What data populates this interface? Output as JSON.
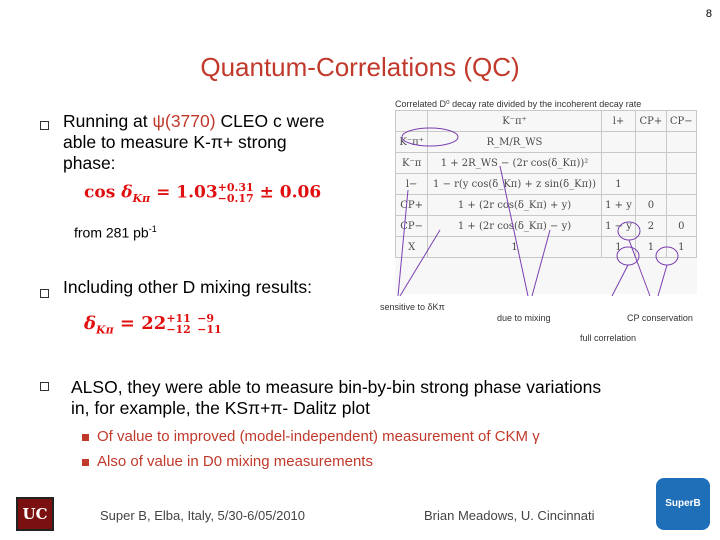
{
  "page_number": "8",
  "title": "Quantum-Correlations (QC)",
  "bullet1": {
    "prefix": "Running at ",
    "psi": "ψ(3770)",
    "rest": " CLEO c were",
    "line2": "able to measure K-π+ strong",
    "line3": "phase:",
    "formula": "cos δKπ = 1.03+0.31−0.17 ± 0.06",
    "lumi_prefix": "from 281 pb",
    "lumi_sup": "-1"
  },
  "bullet2": {
    "text": "Including other D mixing results:",
    "formula": "δKπ = 22+11−12 −9−11"
  },
  "bullet3": {
    "line1": "ALSO, they were able to measure bin-by-bin strong phase variations",
    "line2": "in, for example, the KSπ+π- Dalitz plot",
    "subs": [
      "Of value to improved (model-independent) measurement of CKM γ",
      "Also of value in D0 mixing measurements"
    ]
  },
  "figure": {
    "caption": "Correlated D⁰ decay rate divided by the incoherent decay rate",
    "header": [
      "",
      "K⁻π⁺",
      "l+",
      "CP+",
      "CP−"
    ],
    "rows": [
      [
        "K⁻π⁺",
        "R_M/R_WS",
        "",
        "",
        ""
      ],
      [
        "K⁻π",
        "1 + 2R_WS − (2r cos(δ_Kπ))²",
        "",
        "",
        ""
      ],
      [
        "l−",
        "1 − r(y cos(δ_Kπ) + z sin(δ_Kπ))",
        "1",
        "",
        ""
      ],
      [
        "CP+",
        "1 + (2r cos(δ_Kπ) + y)",
        "1 + y",
        "0",
        ""
      ],
      [
        "CP−",
        "1 + (2r cos(δ_Kπ) − y)",
        "1 − y",
        "2",
        "0"
      ],
      [
        "X",
        "1",
        "1",
        "1",
        "1"
      ]
    ],
    "labels": {
      "sensitive": "sensitive to δKπ",
      "mixing": "due to mixing",
      "cp": "CP conservation",
      "full": "full correlation"
    }
  },
  "footer": {
    "left": "Super B, Elba, Italy, 5/30-6/05/2010",
    "right": "Brian Meadows, U. Cincinnati",
    "logo_left": "UC",
    "logo_right": "SuperB"
  },
  "colors": {
    "title": "#c0392b",
    "formula": "#e01010",
    "footer_logo": "#1f6fb8"
  }
}
